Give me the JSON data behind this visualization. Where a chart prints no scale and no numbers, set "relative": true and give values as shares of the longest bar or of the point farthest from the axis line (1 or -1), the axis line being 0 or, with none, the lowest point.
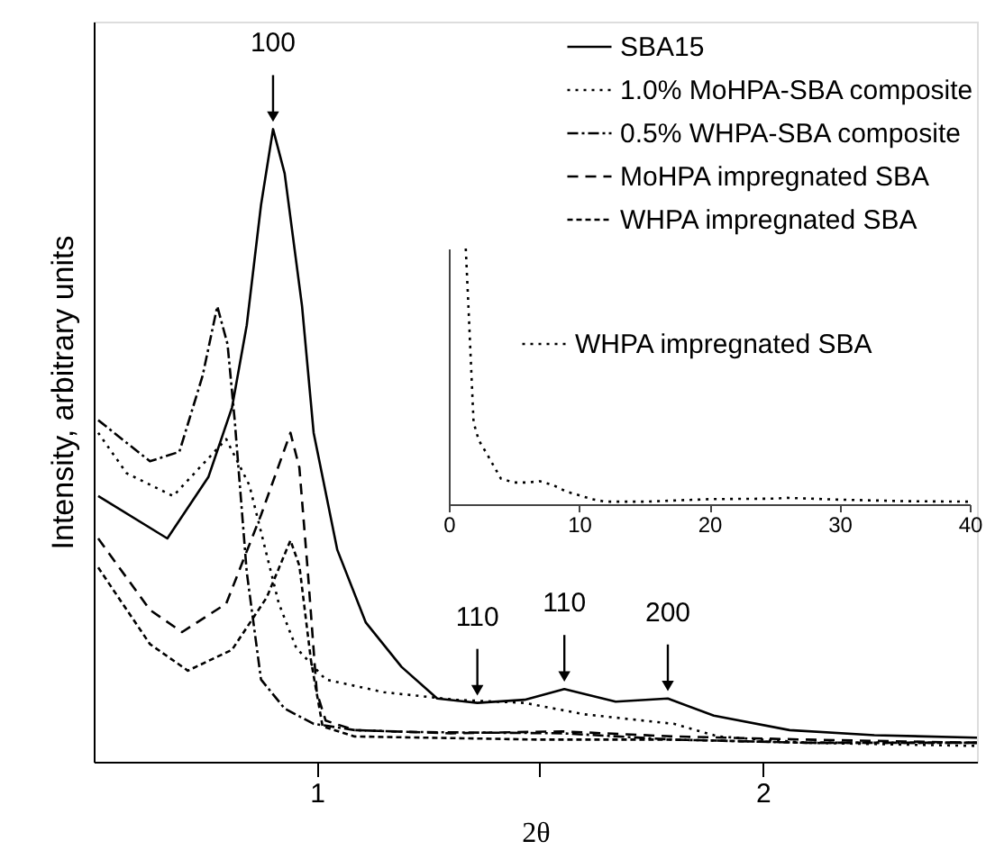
{
  "chart_data": [
    {
      "type": "line",
      "relative": true,
      "xlabel": "2θ",
      "ylabel": "Intensity, arbitrary units",
      "xlim": [
        0.5,
        2.48
      ],
      "xticks": [
        1,
        {
          "value": 1.5,
          "label": null
        },
        2
      ],
      "tick_labels": "x",
      "grid": false,
      "legend": "top right",
      "marker": "none",
      "series": [
        {
          "name": "SBA15",
          "color": "#000000",
          "line_style": "solid",
          "x": [
            0.51,
            0.665,
            0.757,
            0.81,
            0.843,
            0.875,
            0.902,
            0.928,
            0.967,
            0.993,
            1.046,
            1.11,
            1.19,
            1.27,
            1.36,
            1.466,
            1.555,
            1.67,
            1.787,
            1.89,
            2.06,
            2.25,
            2.48
          ],
          "values": [
            0.42,
            0.353,
            0.45,
            0.56,
            0.69,
            0.88,
            1.0,
            0.93,
            0.72,
            0.52,
            0.335,
            0.22,
            0.15,
            0.1,
            0.093,
            0.098,
            0.115,
            0.095,
            0.1,
            0.073,
            0.05,
            0.042,
            0.038
          ]
        },
        {
          "name": "1.0% MoHPA-SBA composite",
          "color": "#000000",
          "line_style": "dotted",
          "x": [
            0.51,
            0.574,
            0.678,
            0.797,
            0.849,
            0.915,
            0.954,
            1.02,
            1.15,
            1.31,
            1.466,
            1.6,
            1.8,
            1.9,
            2.1,
            2.48
          ],
          "values": [
            0.52,
            0.456,
            0.42,
            0.51,
            0.437,
            0.25,
            0.18,
            0.13,
            0.11,
            0.098,
            0.093,
            0.075,
            0.06,
            0.04,
            0.03,
            0.025
          ]
        },
        {
          "name": "0.5% WHPA-SBA composite",
          "color": "#000000",
          "line_style": "dashdot",
          "x": [
            0.51,
            0.626,
            0.692,
            0.744,
            0.777,
            0.8,
            0.816,
            0.843,
            0.875,
            0.928,
            0.993,
            1.085,
            1.22,
            1.55,
            1.8,
            2.1,
            2.48
          ],
          "values": [
            0.54,
            0.475,
            0.49,
            0.61,
            0.72,
            0.66,
            0.54,
            0.3,
            0.13,
            0.084,
            0.06,
            0.05,
            0.047,
            0.045,
            0.035,
            0.03,
            0.03
          ]
        },
        {
          "name": "MoHPA impregnated SBA",
          "color": "#000000",
          "line_style": "dashed",
          "x": [
            0.51,
            0.626,
            0.698,
            0.797,
            0.875,
            0.941,
            0.961,
            0.98,
            1.0,
            1.02,
            1.085,
            1.3,
            1.55,
            1.8,
            2.1,
            2.48
          ],
          "values": [
            0.353,
            0.24,
            0.205,
            0.25,
            0.39,
            0.52,
            0.465,
            0.3,
            0.11,
            0.065,
            0.05,
            0.045,
            0.048,
            0.04,
            0.035,
            0.03
          ]
        },
        {
          "name": "WHPA impregnated SBA",
          "color": "#000000",
          "line_style": "shortdash",
          "x": [
            0.51,
            0.626,
            0.711,
            0.81,
            0.888,
            0.941,
            0.961,
            0.987,
            1.013,
            1.085,
            1.5,
            1.8,
            2.1,
            2.48
          ],
          "values": [
            0.307,
            0.186,
            0.144,
            0.177,
            0.26,
            0.35,
            0.31,
            0.16,
            0.056,
            0.04,
            0.035,
            0.035,
            0.03,
            0.03
          ]
        }
      ],
      "annotations": [
        {
          "text": "100",
          "x": 0.902,
          "y": 1.0
        },
        {
          "text": "110",
          "x": 1.36,
          "y": 0.093
        },
        {
          "text": "110",
          "x": 1.555,
          "y": 0.115
        },
        {
          "text": "200",
          "x": 1.787,
          "y": 0.1
        }
      ]
    },
    {
      "type": "line",
      "relative": true,
      "xlim": [
        0,
        40
      ],
      "xticks": [
        0,
        10,
        20,
        30,
        40
      ],
      "tick_labels": "x",
      "legend": "right",
      "marker": "none",
      "series": [
        {
          "name": "WHPA impregnated SBA",
          "color": "#000000",
          "line_style": "dotted",
          "x": [
            1.3,
            1.5,
            1.7,
            1.9,
            2.3,
            3,
            4,
            5,
            6,
            7,
            8,
            9,
            10,
            11,
            12,
            15,
            20,
            25,
            26,
            30,
            35,
            40
          ],
          "values": [
            1.0,
            0.78,
            0.55,
            0.32,
            0.25,
            0.19,
            0.1,
            0.085,
            0.085,
            0.09,
            0.075,
            0.05,
            0.035,
            0.02,
            0.01,
            0.01,
            0.02,
            0.022,
            0.025,
            0.018,
            0.012,
            0.01
          ]
        }
      ]
    }
  ]
}
